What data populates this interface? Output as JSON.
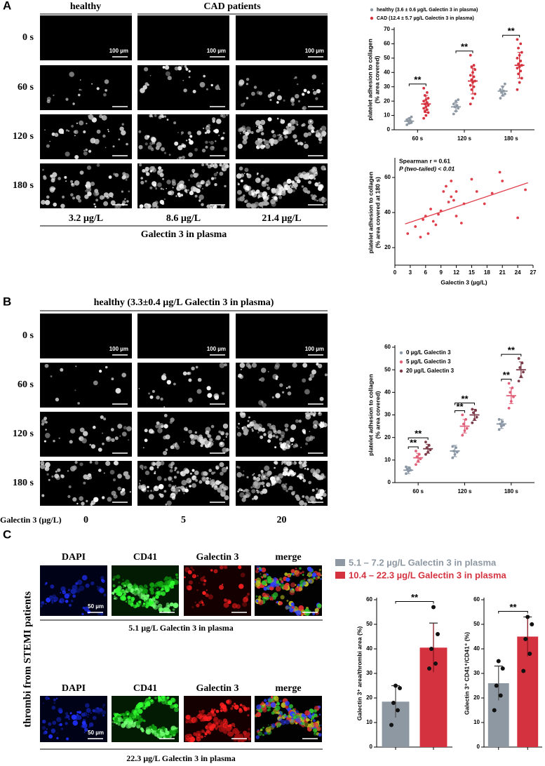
{
  "panel_labels": [
    "A",
    "B",
    "C"
  ],
  "panel_a": {
    "columns": [
      "healthy",
      "CAD patients"
    ],
    "rows": [
      "0 s",
      "60 s",
      "120 s",
      "180 s"
    ],
    "scale_bar": "100 µm",
    "levels": [
      "3.2 µg/L",
      "8.6 µg/L",
      "21.4 µg/L"
    ],
    "caption": "Galectin 3 in plasma"
  },
  "panel_b": {
    "title": "healthy (3.3±0.4 µg/L Galectin 3 in plasma)",
    "rows": [
      "0 s",
      "60 s",
      "120 s",
      "180 s"
    ],
    "scale_bar": "100 µm",
    "axis_label": "Galectin 3 (µg/L)",
    "levels": [
      "0",
      "5",
      "20"
    ]
  },
  "panel_c": {
    "side_label": "thrombi from STEMI patients",
    "channels": [
      "DAPI",
      "CD41",
      "Galectin 3",
      "merge"
    ],
    "scale_bar": "50 µm",
    "captions": [
      "5.1 µg/L Galectin 3 in plasma",
      "22.3 µg/L Galectin 3 in plasma"
    ]
  },
  "chart_data": [
    {
      "type": "dot",
      "ylabel": [
        "platelet adhesion to collagen",
        "(% area covered)"
      ],
      "categories": [
        "60 s",
        "120 s",
        "180 s"
      ],
      "ylim": [
        0,
        70
      ],
      "yticks": [
        0,
        10,
        20,
        30,
        40,
        50,
        60,
        70
      ],
      "series": [
        {
          "name": "healthy (3.6 ± 0.6 µg/L Galectin 3 in plasma)",
          "color": "#8e98a3",
          "values": [
            6,
            16,
            27
          ],
          "sd": [
            1.8,
            3,
            3.5
          ],
          "points": [
            [
              3.5,
              4.5,
              5,
              6,
              6.5,
              7,
              8,
              9
            ],
            [
              11,
              13,
              15,
              16,
              17,
              18,
              20,
              21
            ],
            [
              22,
              24,
              25,
              26,
              27,
              28,
              30,
              32
            ]
          ]
        },
        {
          "name": "CAD (12.4 ± 5.7 µg/L Galectin 3 in plasma)",
          "color": "#d5323f",
          "values": [
            18,
            34,
            45
          ],
          "sd": [
            6,
            9,
            9
          ],
          "points": [
            [
              8,
              10,
              12,
              13,
              14,
              15,
              16,
              17,
              18,
              19,
              20,
              21,
              22,
              24,
              26,
              29
            ],
            [
              18,
              22,
              25,
              28,
              30,
              31,
              33,
              34,
              35,
              37,
              38,
              40,
              42,
              44,
              45,
              52
            ],
            [
              28,
              33,
              36,
              39,
              41,
              43,
              44,
              45,
              46,
              48,
              50,
              52,
              54,
              57,
              60,
              63
            ]
          ]
        }
      ],
      "significance": [
        "**",
        "**",
        "**"
      ]
    },
    {
      "type": "scatter",
      "ylabel": [
        "platelet adhesion to collagen",
        "(% area covered at 180 s)"
      ],
      "xlabel": "Galectin 3 (µg/L)",
      "annotations": [
        "Spearman r = 0.61",
        "P (two-tailed) < 0.01"
      ],
      "color": "#e0404c",
      "xlim": [
        0,
        27
      ],
      "xticks": [
        0,
        3,
        6,
        9,
        12,
        15,
        18,
        21,
        24,
        27
      ],
      "ylim": [
        10,
        70
      ],
      "yticks": [
        20,
        40,
        60
      ],
      "x": [
        2.5,
        4,
        5,
        5.5,
        6,
        6.5,
        7,
        7.5,
        8,
        8.5,
        9,
        9.5,
        10,
        10.5,
        11,
        11,
        11.5,
        12,
        12,
        13,
        13.5,
        15,
        16,
        17.5,
        19,
        20.5,
        21,
        24,
        25.5
      ],
      "y": [
        28,
        32,
        26,
        36,
        38,
        28,
        42,
        35,
        33,
        39,
        41,
        52,
        55,
        46,
        58,
        49,
        47,
        38,
        52,
        34,
        45,
        59,
        52,
        45,
        51,
        63,
        58,
        37,
        53
      ],
      "fit": {
        "x": [
          2,
          26
        ],
        "y": [
          33.5,
          57
        ]
      }
    },
    {
      "type": "dot",
      "ylabel": [
        "platelet adhesion to collagen",
        "(% area covered)"
      ],
      "categories": [
        "60 s",
        "120 s",
        "180 s"
      ],
      "ylim": [
        0,
        60
      ],
      "yticks": [
        0,
        10,
        20,
        30,
        40,
        50,
        60
      ],
      "series": [
        {
          "name": "0 µg/L Galectin 3",
          "color": "#8a96a4",
          "values": [
            5.5,
            14,
            26
          ],
          "sd": [
            1.5,
            2.5,
            2
          ],
          "points": [
            [
              4,
              5,
              5.5,
              6,
              6.5,
              7
            ],
            [
              11,
              12.5,
              13.5,
              14,
              15.5,
              16
            ],
            [
              23.5,
              25,
              25.5,
              26,
              27,
              28
            ]
          ]
        },
        {
          "name": "5 µg/L Galectin 3",
          "color": "#e0607a",
          "values": [
            11,
            25,
            38.5
          ],
          "sd": [
            2,
            3,
            3.5
          ],
          "points": [
            [
              8,
              9.5,
              10.5,
              11.5,
              12.5,
              14
            ],
            [
              21,
              23,
              24,
              26,
              28,
              30
            ],
            [
              33,
              36,
              38,
              40,
              42,
              44
            ]
          ]
        },
        {
          "name": "20 µg/L Galectin 3",
          "color": "#7a3a48",
          "values": [
            15,
            30,
            50
          ],
          "sd": [
            2,
            2.5,
            3.5
          ],
          "points": [
            [
              12.5,
              13.5,
              14.5,
              15.5,
              16.5,
              18
            ],
            [
              26.5,
              28,
              29,
              31,
              32,
              32.5
            ],
            [
              45,
              47,
              49,
              51,
              53,
              55
            ]
          ]
        }
      ],
      "significance": [
        [
          "**",
          "**"
        ],
        [
          "**",
          "**"
        ],
        [
          "**",
          "**"
        ]
      ]
    },
    {
      "type": "bar",
      "ylabel": "Galectin 3⁺ area/thrombi area (%)",
      "ylim": [
        0,
        60
      ],
      "yticks": [
        0,
        10,
        20,
        30,
        40,
        50,
        60
      ],
      "series": [
        {
          "name": "5.1 – 7.2 µg/L Galectin 3 in plasma",
          "color": "#8e98a3",
          "value": 18.5,
          "error": 6.5,
          "points": [
            9,
            15,
            18,
            24,
            25
          ]
        },
        {
          "name": "10.4 – 22.3 µg/L Galectin 3 in plasma",
          "color": "#d5323f",
          "value": 40.5,
          "error": 10,
          "points": [
            32,
            34,
            40,
            46,
            57
          ]
        }
      ],
      "significance": "**"
    },
    {
      "type": "bar",
      "ylabel": "Galectin 3⁺ CD41⁺/CD41⁺ (%)",
      "ylim": [
        0,
        60
      ],
      "yticks": [
        0,
        10,
        20,
        30,
        40,
        50,
        60
      ],
      "series": [
        {
          "color": "#8e98a3",
          "value": 26,
          "error": 7,
          "points": [
            15,
            21,
            25,
            32,
            35
          ]
        },
        {
          "color": "#d5323f",
          "value": 45,
          "error": 8,
          "points": [
            31,
            38,
            44,
            50,
            53
          ]
        }
      ],
      "significance": "**"
    }
  ]
}
